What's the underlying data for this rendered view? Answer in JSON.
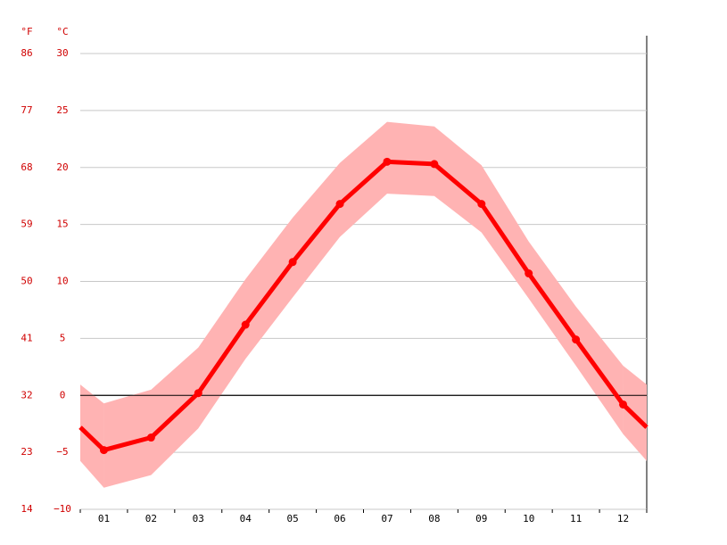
{
  "chart_data": {
    "type": "line",
    "y_label": "°C",
    "y2_label": "°F",
    "categories": [
      "01",
      "02",
      "03",
      "04",
      "05",
      "06",
      "07",
      "08",
      "09",
      "10",
      "11",
      "12"
    ],
    "values": [
      -4.8,
      -3.7,
      0.2,
      6.2,
      11.7,
      16.8,
      20.5,
      20.3,
      16.8,
      10.7,
      4.9,
      -0.8
    ],
    "high": [
      -0.7,
      0.5,
      4.2,
      10.2,
      15.6,
      20.4,
      24.0,
      23.6,
      20.2,
      13.5,
      7.8,
      2.6
    ],
    "low": [
      -8.1,
      -7.0,
      -2.9,
      3.2,
      8.6,
      13.9,
      17.7,
      17.5,
      14.3,
      8.5,
      2.6,
      -3.4
    ],
    "color": "#ff0000",
    "band_color": "#ffb3b3",
    "ylim": [
      -10,
      30
    ],
    "yticks": [
      {
        "value": -10,
        "label": "−10"
      },
      {
        "value": -5,
        "label": "−5"
      },
      0,
      5,
      10,
      15,
      20,
      25,
      30
    ],
    "y2lim": [
      14,
      86
    ],
    "y2ticks": [
      14,
      23,
      32,
      41,
      50,
      59,
      68,
      77,
      86
    ],
    "grid": true
  }
}
